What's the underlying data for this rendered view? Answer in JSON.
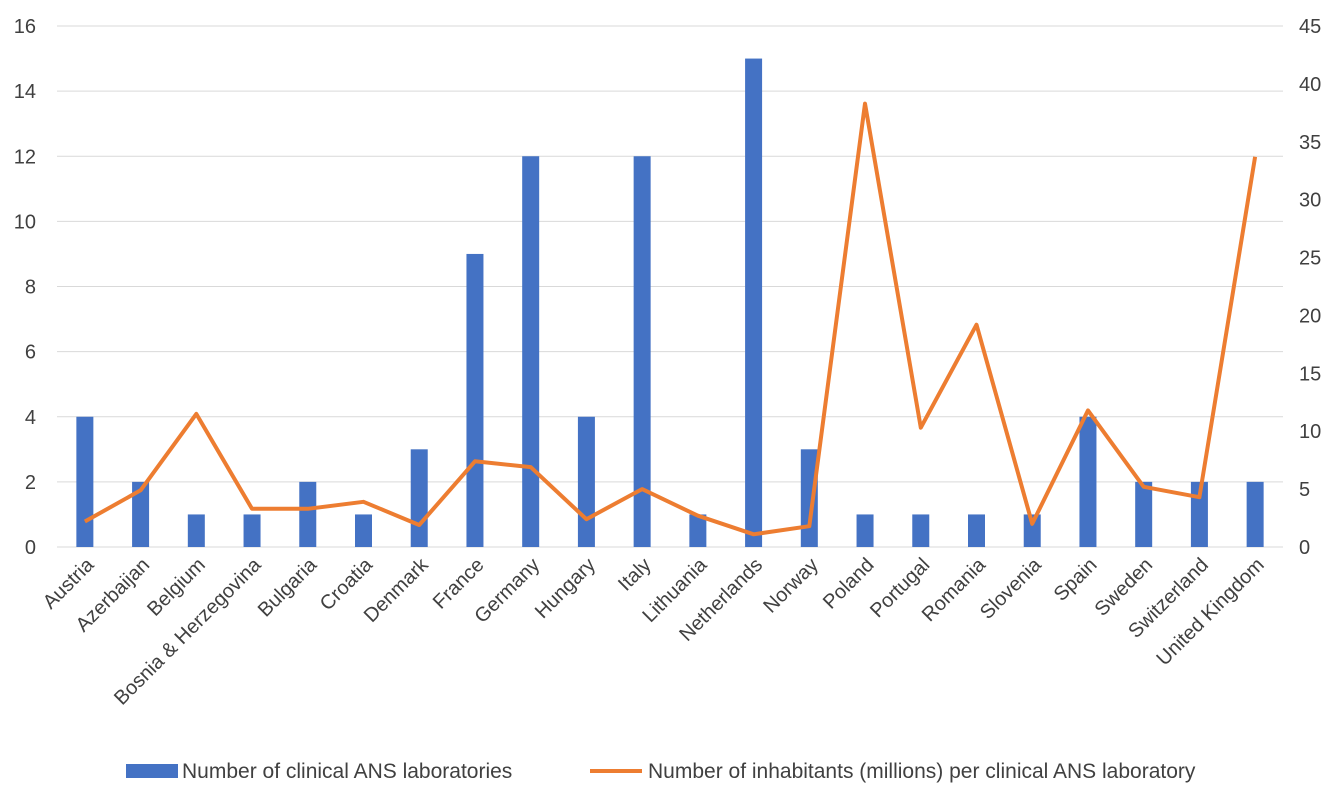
{
  "chart_data": {
    "type": "bar",
    "categories": [
      "Austria",
      "Azerbaijan",
      "Belgium",
      "Bosnia & Herzegovina",
      "Bulgaria",
      "Croatia",
      "Denmark",
      "France",
      "Germany",
      "Hungary",
      "Italy",
      "Lithuania",
      "Netherlands",
      "Norway",
      "Poland",
      "Portugal",
      "Romania",
      "Slovenia",
      "Spain",
      "Sweden",
      "Switzerland",
      "United Kingdom"
    ],
    "series": [
      {
        "name": "Number of clinical ANS laboratories",
        "chart": "bar",
        "axis": "left",
        "color": "#4472c4",
        "values": [
          4,
          2,
          1,
          1,
          2,
          1,
          3,
          9,
          12,
          4,
          12,
          1,
          15,
          3,
          1,
          1,
          1,
          1,
          4,
          2,
          2,
          2
        ]
      },
      {
        "name": "Number of inhabitants (millions) per clinical ANS laboratory",
        "chart": "line",
        "axis": "right",
        "color": "#ed7d31",
        "values": [
          2.2,
          4.9,
          11.5,
          3.3,
          3.3,
          3.9,
          1.9,
          7.4,
          6.9,
          2.4,
          5.0,
          2.7,
          1.1,
          1.8,
          38.3,
          10.3,
          19.2,
          2.0,
          11.8,
          5.2,
          4.3,
          33.7
        ]
      }
    ],
    "y_left": {
      "ylim": [
        0,
        16
      ],
      "ticks": [
        "0",
        "2",
        "4",
        "6",
        "8",
        "10",
        "12",
        "14",
        "16"
      ]
    },
    "y_right": {
      "ylim": [
        0,
        45
      ],
      "ticks": [
        "0",
        "5",
        "10",
        "15",
        "20",
        "25",
        "30",
        "35",
        "40",
        "45"
      ]
    },
    "grid": true,
    "legend": "bottom"
  }
}
